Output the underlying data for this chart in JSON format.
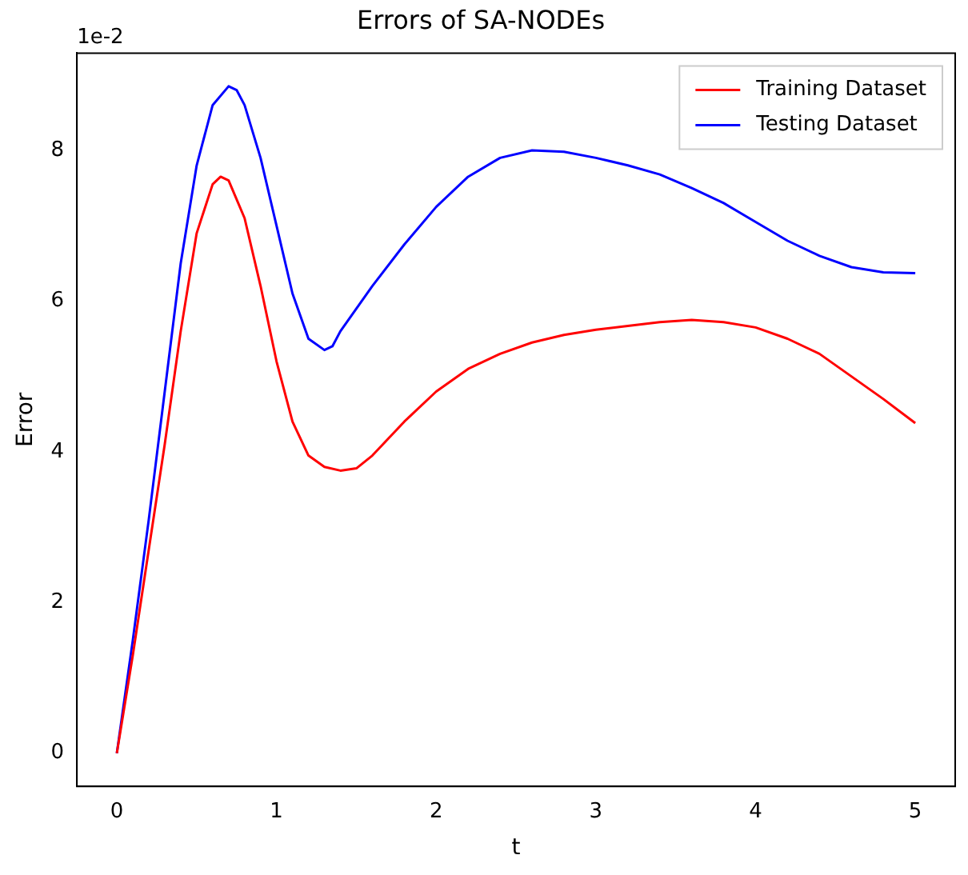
{
  "chart_data": {
    "type": "line",
    "title": "Errors of SA-NODEs",
    "xlabel": "t",
    "ylabel": "Error",
    "annotations": [
      "1e-2"
    ],
    "xlim": [
      -0.25,
      5.25
    ],
    "xticks": [
      0,
      1,
      2,
      3,
      4,
      5
    ],
    "ylim": [
      -0.44,
      9.29
    ],
    "yticks": [
      0,
      2,
      4,
      6,
      8
    ],
    "grid": false,
    "legend": "top right",
    "marker": "none",
    "line_style": "solid",
    "series": [
      {
        "name": "Training Dataset",
        "color": "#ff0000",
        "x": [
          0,
          0.1,
          0.2,
          0.3,
          0.4,
          0.5,
          0.6,
          0.65,
          0.7,
          0.8,
          0.9,
          1.0,
          1.1,
          1.2,
          1.3,
          1.4,
          1.5,
          1.6,
          1.8,
          2.0,
          2.2,
          2.4,
          2.6,
          2.8,
          3.0,
          3.2,
          3.4,
          3.6,
          3.8,
          4.0,
          4.2,
          4.4,
          4.6,
          4.8,
          5.0
        ],
        "values": [
          0,
          1.3,
          2.7,
          4.1,
          5.6,
          6.9,
          7.55,
          7.65,
          7.6,
          7.1,
          6.2,
          5.2,
          4.4,
          3.95,
          3.8,
          3.75,
          3.78,
          3.95,
          4.4,
          4.8,
          5.1,
          5.3,
          5.45,
          5.55,
          5.62,
          5.67,
          5.72,
          5.75,
          5.72,
          5.65,
          5.5,
          5.3,
          5.0,
          4.7,
          4.38
        ]
      },
      {
        "name": "Testing Dataset",
        "color": "#0000ff",
        "x": [
          0,
          0.1,
          0.2,
          0.3,
          0.4,
          0.5,
          0.6,
          0.7,
          0.75,
          0.8,
          0.9,
          1.0,
          1.1,
          1.2,
          1.3,
          1.35,
          1.4,
          1.6,
          1.8,
          2.0,
          2.2,
          2.4,
          2.6,
          2.8,
          3.0,
          3.2,
          3.4,
          3.6,
          3.8,
          4.0,
          4.2,
          4.4,
          4.6,
          4.8,
          5.0
        ],
        "values": [
          0,
          1.5,
          3.1,
          4.8,
          6.5,
          7.8,
          8.6,
          8.85,
          8.8,
          8.6,
          7.9,
          7.0,
          6.1,
          5.5,
          5.35,
          5.4,
          5.6,
          6.2,
          6.75,
          7.25,
          7.65,
          7.9,
          8.0,
          7.98,
          7.9,
          7.8,
          7.68,
          7.5,
          7.3,
          7.05,
          6.8,
          6.6,
          6.45,
          6.38,
          6.37
        ]
      }
    ]
  }
}
